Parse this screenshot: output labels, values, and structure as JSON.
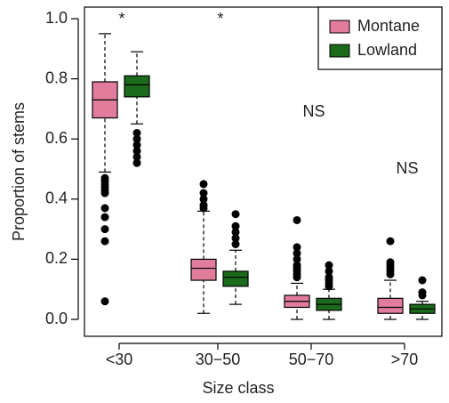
{
  "chart_data": {
    "type": "box",
    "xlabel": "Size class",
    "ylabel": "Proportion of stems",
    "categories": [
      "<30",
      "30−50",
      "50−70",
      ">70"
    ],
    "annotations": [
      "*",
      "*",
      "NS",
      "NS"
    ],
    "ylim": [
      0,
      1
    ],
    "yticks": [
      {
        "value": 0,
        "label": "0.0"
      },
      {
        "value": 0.2,
        "label": "0.2"
      },
      {
        "value": 0.4,
        "label": "0.4"
      },
      {
        "value": 0.6,
        "label": "0.6"
      },
      {
        "value": 0.8,
        "label": "0.8"
      },
      {
        "value": 1,
        "label": "1.0"
      }
    ],
    "legend": "top-right",
    "series": [
      {
        "name": "Montane",
        "color": "#e27c9c",
        "boxes": [
          {
            "whisker_low": 0.49,
            "q1": 0.67,
            "median": 0.73,
            "q3": 0.79,
            "whisker_high": 0.95,
            "outliers": [
              0.47,
              0.46,
              0.45,
              0.44,
              0.43,
              0.42,
              0.37,
              0.34,
              0.3,
              0.26,
              0.06
            ]
          },
          {
            "whisker_low": 0.02,
            "q1": 0.13,
            "median": 0.17,
            "q3": 0.2,
            "whisker_high": 0.36,
            "outliers": [
              0.45,
              0.42,
              0.4,
              0.38,
              0.37
            ]
          },
          {
            "whisker_low": 0.0,
            "q1": 0.04,
            "median": 0.06,
            "q3": 0.08,
            "whisker_high": 0.12,
            "outliers": [
              0.33,
              0.24,
              0.22,
              0.2,
              0.18,
              0.17,
              0.16,
              0.15,
              0.14
            ]
          },
          {
            "whisker_low": 0.0,
            "q1": 0.02,
            "median": 0.04,
            "q3": 0.07,
            "whisker_high": 0.13,
            "outliers": [
              0.26,
              0.19,
              0.18,
              0.17,
              0.16,
              0.15
            ]
          }
        ]
      },
      {
        "name": "Lowland",
        "color": "#1c6b1c",
        "boxes": [
          {
            "whisker_low": 0.65,
            "q1": 0.74,
            "median": 0.78,
            "q3": 0.81,
            "whisker_high": 0.89,
            "outliers": [
              0.62,
              0.6,
              0.58,
              0.56,
              0.54,
              0.52
            ]
          },
          {
            "whisker_low": 0.05,
            "q1": 0.11,
            "median": 0.14,
            "q3": 0.16,
            "whisker_high": 0.23,
            "outliers": [
              0.35,
              0.31,
              0.29,
              0.27,
              0.25
            ]
          },
          {
            "whisker_low": 0.0,
            "q1": 0.03,
            "median": 0.05,
            "q3": 0.07,
            "whisker_high": 0.1,
            "outliers": [
              0.18,
              0.16,
              0.14,
              0.13,
              0.12,
              0.11
            ]
          },
          {
            "whisker_low": 0.0,
            "q1": 0.02,
            "median": 0.035,
            "q3": 0.05,
            "whisker_high": 0.06,
            "outliers": [
              0.13,
              0.09,
              0.08
            ]
          }
        ]
      }
    ]
  }
}
